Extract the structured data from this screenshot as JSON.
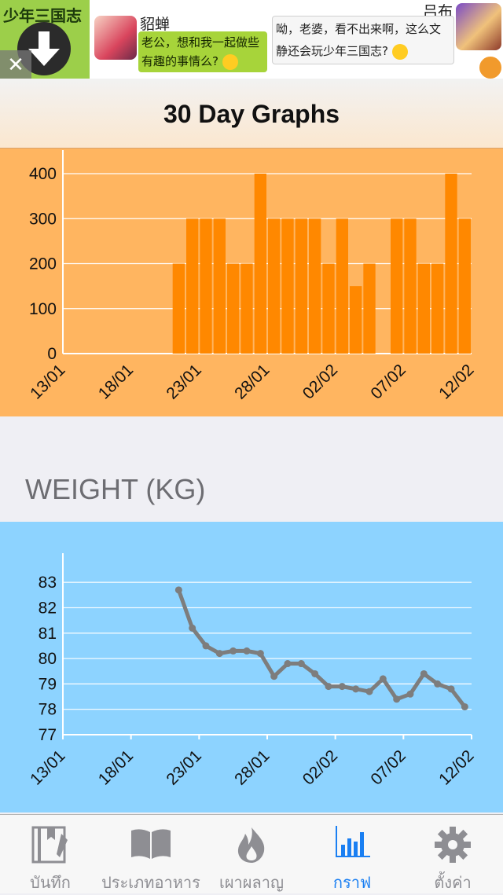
{
  "ad": {
    "game_title": "少年三国志",
    "char1_name": "貂蝉",
    "char1_line": "老公，想和我一起做些有趣的事情么?",
    "char2_name": "吕布",
    "char2_line": "呦，老婆，看不出来啊，这么文静还会玩少年三国志?",
    "close_label": "✕"
  },
  "header": {
    "title": "30 Day Graphs"
  },
  "weight_section": {
    "title": "WEIGHT (KG)"
  },
  "tabs": [
    {
      "label": "บันทึก",
      "icon": "diary-icon",
      "active": false
    },
    {
      "label": "ประเภทอาหาร",
      "icon": "book-icon",
      "active": false
    },
    {
      "label": "เผาผลาญ",
      "icon": "flame-icon",
      "active": false
    },
    {
      "label": "กราฟ",
      "icon": "bar-chart-icon",
      "active": true
    },
    {
      "label": "ตั้งค่า",
      "icon": "gear-icon",
      "active": false
    }
  ],
  "colors": {
    "orange_panel": "#ffb560",
    "bar_fill": "#ff8800",
    "blue_panel": "#8dd3ff",
    "line_stroke": "#7d7d7d",
    "tab_active": "#1a7ff2",
    "tab_inactive": "#8e8e93"
  },
  "chart_data": [
    {
      "type": "bar",
      "x_ticks": [
        "13/01",
        "18/01",
        "23/01",
        "28/01",
        "02/02",
        "07/02",
        "12/02"
      ],
      "y_ticks": [
        0,
        100,
        200,
        300,
        400
      ],
      "ylim": [
        0,
        400
      ],
      "grid": true,
      "days": [
        "21/01",
        "22/01",
        "23/01",
        "24/01",
        "25/01",
        "26/01",
        "27/01",
        "28/01",
        "29/01",
        "30/01",
        "31/01",
        "01/02",
        "02/02",
        "03/02",
        "04/02",
        "05/02",
        "06/02",
        "07/02",
        "08/02",
        "09/02",
        "10/02",
        "11/02"
      ],
      "values": [
        200,
        300,
        300,
        300,
        200,
        200,
        400,
        300,
        300,
        300,
        300,
        200,
        300,
        150,
        200,
        null,
        300,
        300,
        200,
        200,
        400,
        300
      ]
    },
    {
      "type": "line",
      "x_ticks": [
        "13/01",
        "18/01",
        "23/01",
        "28/01",
        "02/02",
        "07/02",
        "12/02"
      ],
      "y_ticks": [
        77,
        78,
        79,
        80,
        81,
        82,
        83
      ],
      "ylim": [
        77,
        83.5
      ],
      "grid": true,
      "days": [
        "21/01",
        "22/01",
        "23/01",
        "24/01",
        "25/01",
        "26/01",
        "27/01",
        "28/01",
        "29/01",
        "30/01",
        "31/01",
        "01/02",
        "02/02",
        "03/02",
        "04/02",
        "05/02",
        "06/02",
        "07/02",
        "08/02",
        "09/02",
        "10/02",
        "11/02"
      ],
      "values": [
        82.7,
        81.2,
        80.5,
        80.2,
        80.3,
        80.3,
        80.2,
        79.3,
        79.8,
        79.8,
        79.4,
        78.9,
        78.9,
        78.8,
        78.7,
        79.2,
        78.4,
        78.6,
        79.4,
        79.0,
        78.8,
        78.1
      ]
    }
  ]
}
